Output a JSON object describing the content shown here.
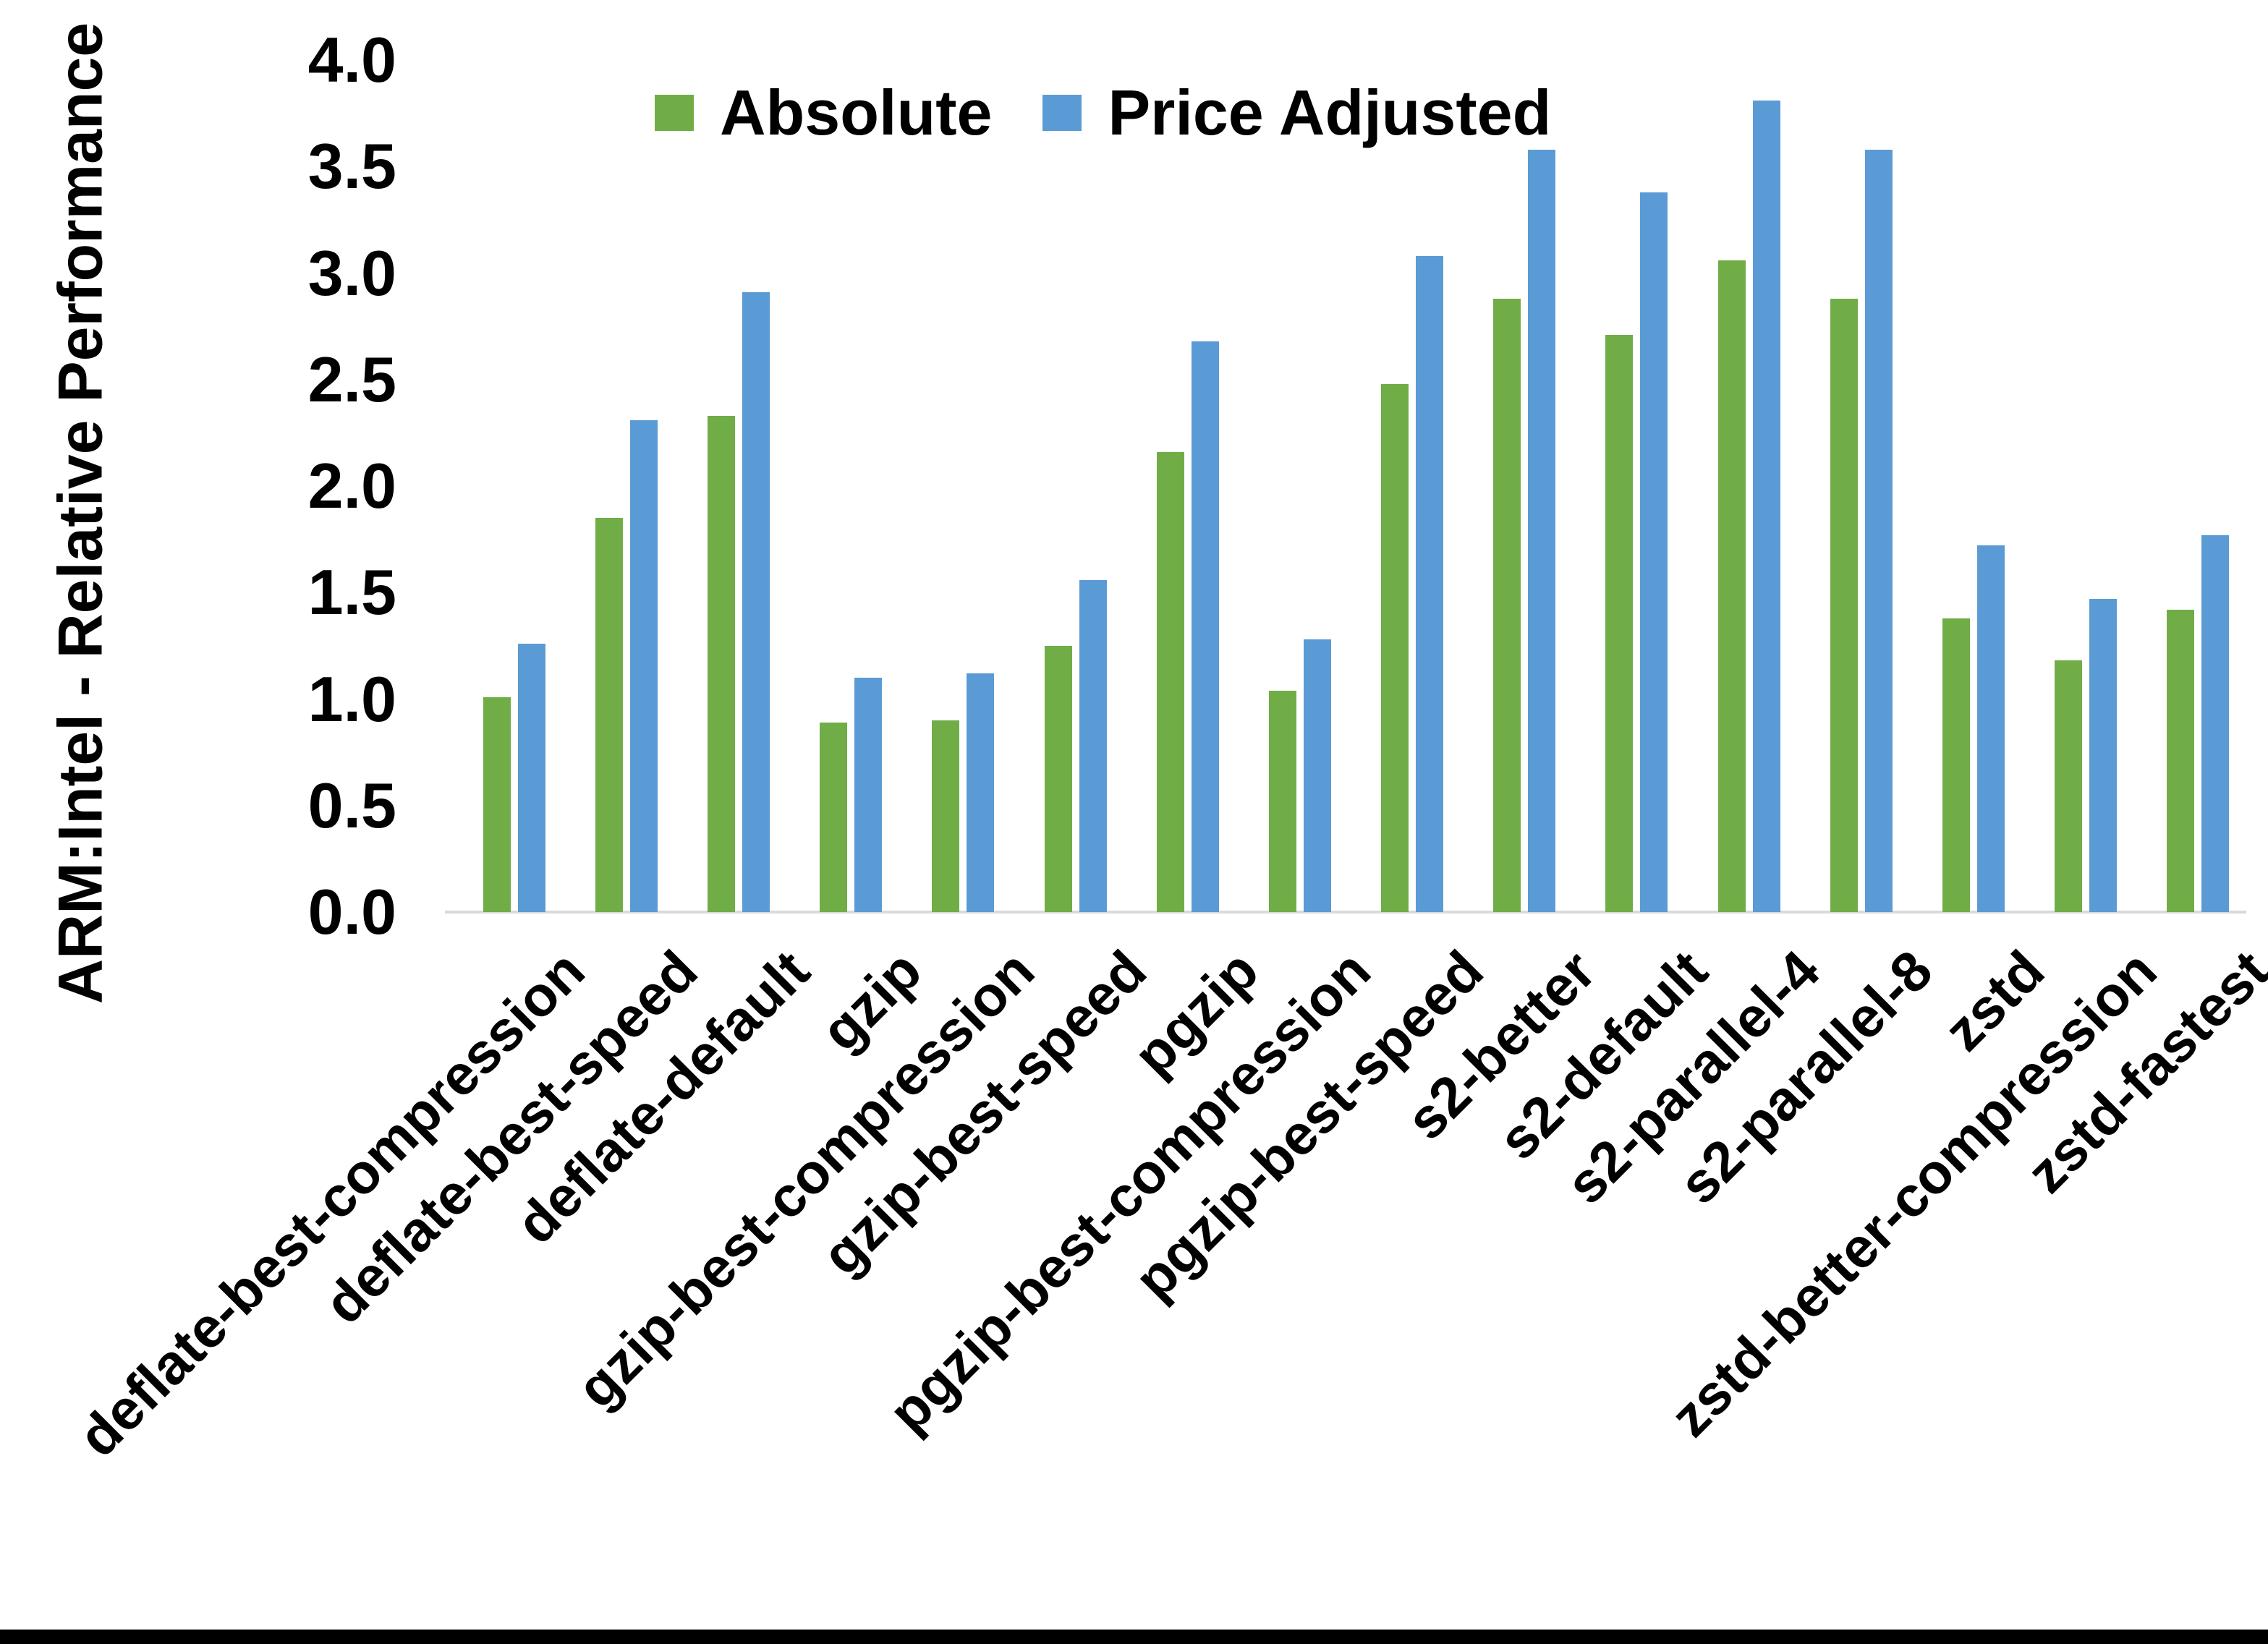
{
  "chart_data": {
    "type": "bar",
    "title": "",
    "xlabel": "",
    "ylabel": "ARM:Intel - Relative Performance",
    "ylim": [
      0.0,
      4.0
    ],
    "ytick_step": 0.5,
    "ytick_labels": [
      "0.0",
      "0.5",
      "1.0",
      "1.5",
      "2.0",
      "2.5",
      "3.0",
      "3.5",
      "4.0"
    ],
    "grid": false,
    "legend_position": "top-center",
    "categories": [
      "deflate-best-compression",
      "deflate-best-speed",
      "deflate-default",
      "gzip",
      "gzip-best-compression",
      "gzip-best-speed",
      "pgzip",
      "pgzip-best-compression",
      "pgzip-best-speed",
      "s2-better",
      "s2-default",
      "s2-parallel-4",
      "s2-parallel-8",
      "zstd",
      "zstd-better-compression",
      "zstd-fastest"
    ],
    "series": [
      {
        "name": "Absolute",
        "color": "#70AD47",
        "values": [
          1.01,
          1.85,
          2.33,
          0.89,
          0.9,
          1.25,
          2.16,
          1.04,
          2.48,
          2.88,
          2.71,
          3.06,
          2.88,
          1.38,
          1.18,
          1.42
        ]
      },
      {
        "name": "Price Adjusted",
        "color": "#5B9BD5",
        "values": [
          1.26,
          2.31,
          2.91,
          1.1,
          1.12,
          1.56,
          2.68,
          1.28,
          3.08,
          3.58,
          3.38,
          3.81,
          3.58,
          1.72,
          1.47,
          1.77
        ]
      }
    ],
    "axis_line_color": "#D9D9D9",
    "text_color": "#000000"
  }
}
